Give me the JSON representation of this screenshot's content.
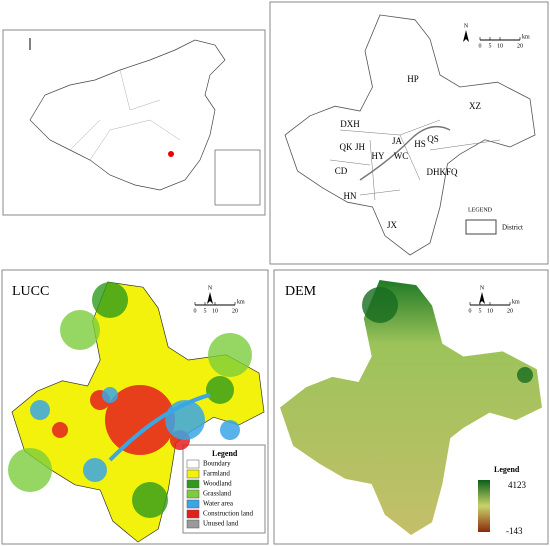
{
  "district_map": {
    "north": "N",
    "scale": {
      "ticks": [
        0,
        5,
        10,
        20
      ],
      "unit": "km"
    },
    "districts": [
      "HP",
      "XZ",
      "DXH",
      "JA",
      "QK",
      "JH",
      "HS",
      "QS",
      "HY",
      "WC",
      "CD",
      "DHKFQ",
      "HN",
      "JX"
    ],
    "legend": {
      "title": "LEGEND",
      "item": "District"
    }
  },
  "lucc_map": {
    "title": "LUCC",
    "north": "N",
    "scale": {
      "ticks": [
        0,
        5,
        10,
        20
      ],
      "unit": "km"
    },
    "legend": {
      "title": "Legend",
      "items": [
        {
          "label": "Boundary",
          "color": "#ffffff"
        },
        {
          "label": "Farmland",
          "color": "#f2f20c"
        },
        {
          "label": "Woodland",
          "color": "#2e9b1c"
        },
        {
          "label": "Grassland",
          "color": "#7ccd3c"
        },
        {
          "label": "Water area",
          "color": "#3aa6e6"
        },
        {
          "label": "Construction land",
          "color": "#e51e1e"
        },
        {
          "label": "Unused land",
          "color": "#9a9a9a"
        }
      ]
    }
  },
  "dem_map": {
    "title": "DEM",
    "north": "N",
    "scale": {
      "ticks": [
        0,
        5,
        10,
        20
      ],
      "unit": "km"
    },
    "legend": {
      "title": "Legend",
      "max": 4123,
      "min": -143
    }
  }
}
